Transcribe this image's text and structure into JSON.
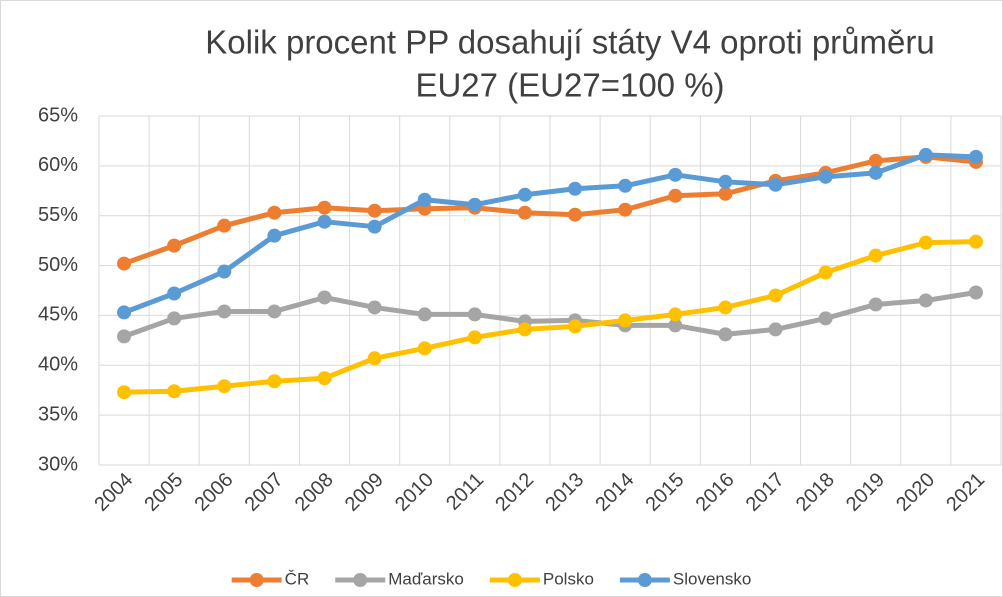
{
  "chart_data": {
    "type": "line",
    "title": [
      "Kolik procent PP dosahují státy V4 oproti průměru",
      "EU27 (EU27=100 %)"
    ],
    "categories": [
      "2004",
      "2005",
      "2006",
      "2007",
      "2008",
      "2009",
      "2010",
      "2011",
      "2012",
      "2013",
      "2014",
      "2015",
      "2016",
      "2017",
      "2018",
      "2019",
      "2020",
      "2021"
    ],
    "series": [
      {
        "name": "ČR",
        "color": "#ed7d31",
        "values": [
          50.2,
          52,
          54,
          55.3,
          55.8,
          55.5,
          55.7,
          55.8,
          55.3,
          55.1,
          55.6,
          57,
          57.2,
          58.5,
          59.3,
          60.5,
          60.9,
          60.4
        ]
      },
      {
        "name": "Maďarsko",
        "color": "#a5a5a5",
        "values": [
          42.9,
          44.7,
          45.4,
          45.4,
          46.8,
          45.8,
          45.1,
          45.1,
          44.4,
          44.5,
          44,
          44,
          43.1,
          43.6,
          44.7,
          46.1,
          46.5,
          47.3
        ]
      },
      {
        "name": "Polsko",
        "color": "#ffc000",
        "values": [
          37.3,
          37.4,
          37.9,
          38.4,
          38.7,
          40.7,
          41.7,
          42.8,
          43.6,
          43.9,
          44.5,
          45.1,
          45.8,
          47,
          49.3,
          51,
          52.3,
          52.4
        ]
      },
      {
        "name": "Slovensko",
        "color": "#5b9bd5",
        "values": [
          45.3,
          47.2,
          49.4,
          53,
          54.4,
          53.9,
          56.6,
          56.1,
          57.1,
          57.7,
          58,
          59.1,
          58.4,
          58.1,
          58.9,
          59.3,
          61.1,
          60.9
        ]
      }
    ],
    "ylim": [
      30,
      65
    ],
    "yticks": [
      {
        "value": 30,
        "label": "30%"
      },
      {
        "value": 35,
        "label": "35%"
      },
      {
        "value": 40,
        "label": "40%"
      },
      {
        "value": 45,
        "label": "45%"
      },
      {
        "value": 50,
        "label": "50%"
      },
      {
        "value": 55,
        "label": "55%"
      },
      {
        "value": 60,
        "label": "60%"
      },
      {
        "value": 65,
        "label": "65%"
      }
    ],
    "grid": true,
    "legend": "bottom"
  }
}
